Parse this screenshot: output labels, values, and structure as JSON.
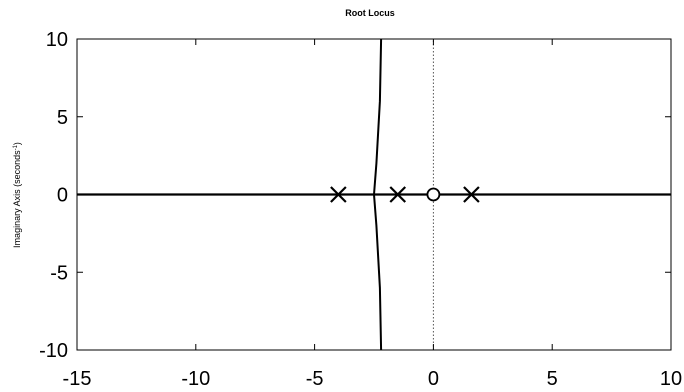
{
  "chart_data": {
    "type": "line",
    "title": "Root Locus",
    "ylabel_prefix": "Imaginary Axis (seconds",
    "ylabel_sup": "-1",
    "ylabel_suffix": ")",
    "xlabel": "",
    "xlim": [
      -15,
      10
    ],
    "ylim": [
      -10,
      10
    ],
    "xticks": [
      -15,
      -10,
      -5,
      0,
      5,
      10
    ],
    "xtick_labels": [
      "-15",
      "-10",
      "-5",
      "0",
      "5",
      "10"
    ],
    "yticks": [
      -10,
      -5,
      0,
      5,
      10
    ],
    "ytick_labels": [
      "-10",
      "-5",
      "0",
      "5",
      "10"
    ],
    "grid": false,
    "poles": [
      {
        "re": -4,
        "im": 0
      },
      {
        "re": -1.5,
        "im": 0
      },
      {
        "re": 1.6,
        "im": 0
      }
    ],
    "zeros": [
      {
        "re": 0,
        "im": 0
      }
    ],
    "branches": [
      {
        "points": [
          [
            -2.2,
            10
          ],
          [
            -2.25,
            6
          ],
          [
            -2.4,
            2
          ],
          [
            -2.5,
            0
          ],
          [
            -2.4,
            -2
          ],
          [
            -2.25,
            -6
          ],
          [
            -2.2,
            -10
          ]
        ]
      }
    ],
    "real_axis_locus": [
      [
        -15,
        0
      ],
      [
        10,
        0
      ]
    ],
    "imag_axis_reference": [
      [
        0,
        -10
      ],
      [
        0,
        10
      ]
    ],
    "colors": {
      "locus": "#000000",
      "axes": "#000000",
      "reference": "#555555",
      "background": "#ffffff"
    }
  }
}
